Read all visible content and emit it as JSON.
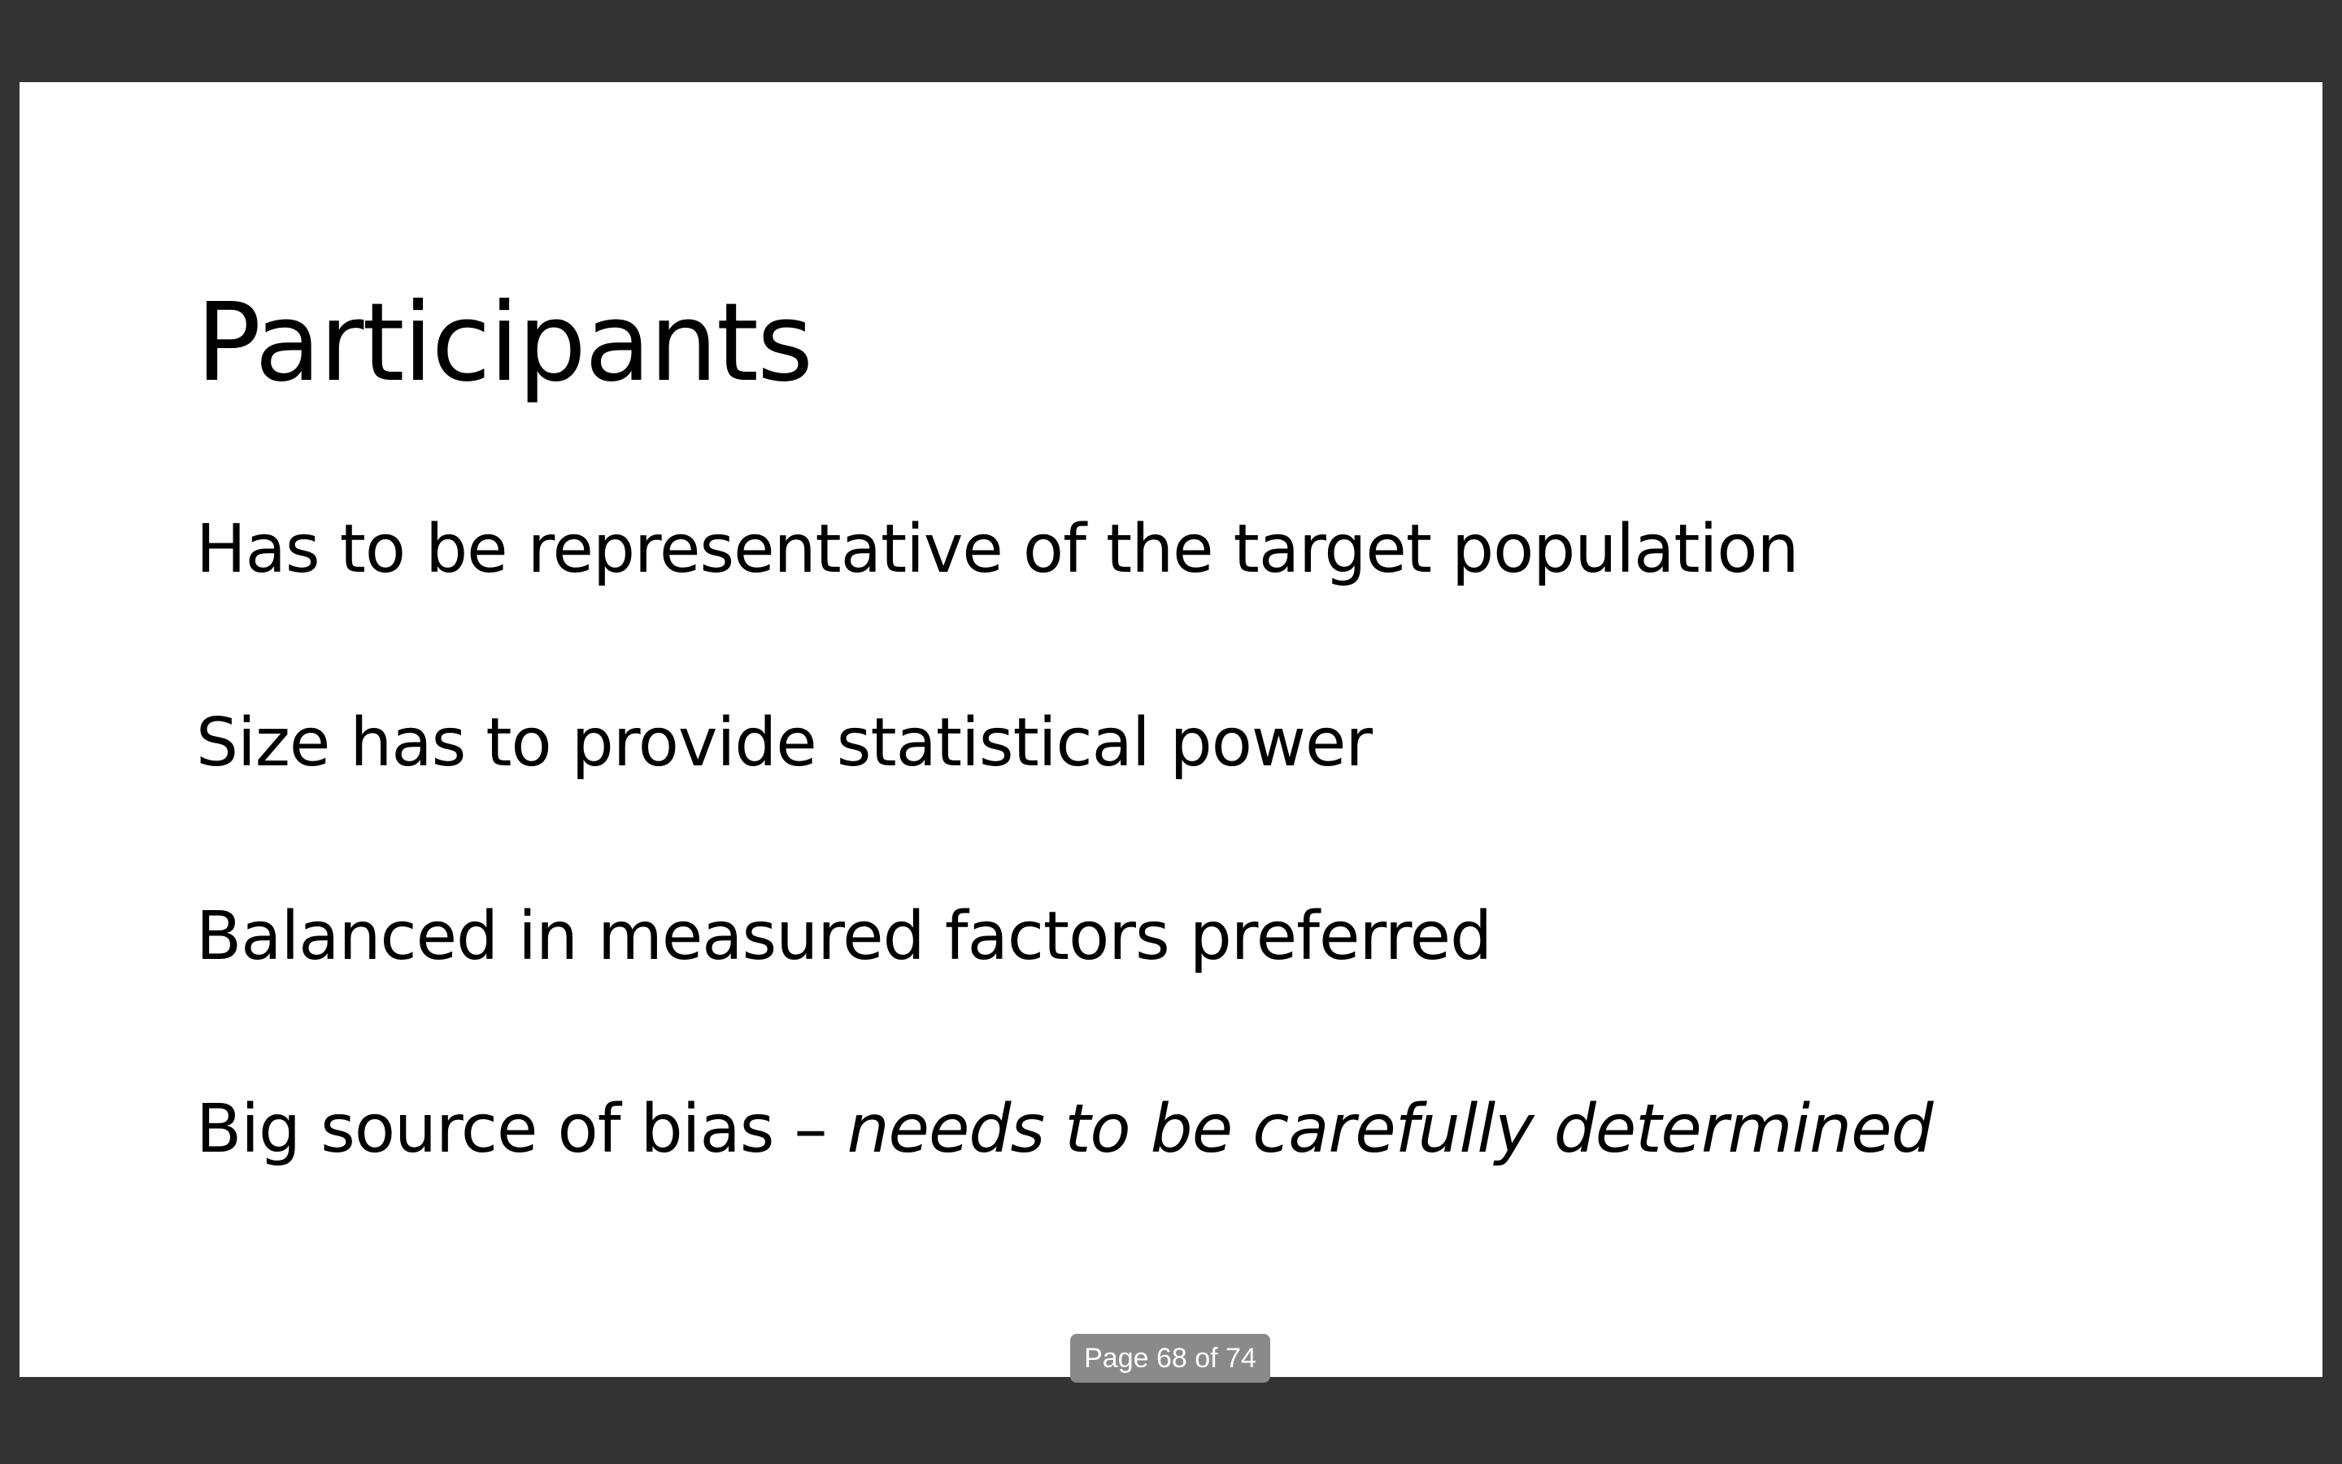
{
  "slide": {
    "title": "Participants",
    "bullets": [
      {
        "text": "Has to be representative of the target population"
      },
      {
        "text": "Size has to provide statistical power"
      },
      {
        "text": "Balanced in measured factors preferred"
      },
      {
        "text": "Big source of bias – ",
        "emphasis": "needs to be carefully determined"
      }
    ]
  },
  "viewer": {
    "page_indicator": "Page 68 of 74",
    "current_page": 68,
    "total_pages": 74,
    "background_color": "#333333",
    "slide_color": "#ffffff"
  }
}
